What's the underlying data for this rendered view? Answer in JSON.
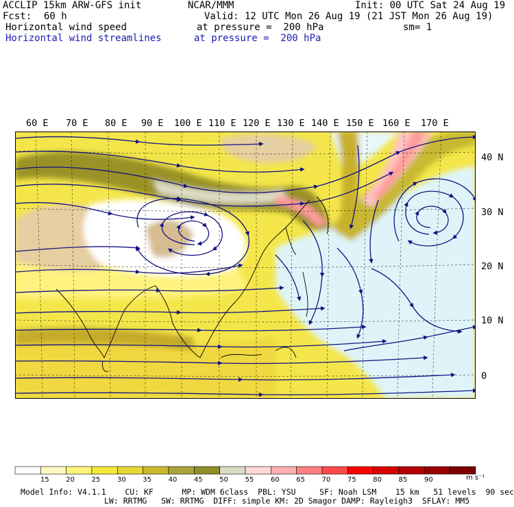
{
  "header": {
    "model": "ACCLIP 15km ARW-GFS init",
    "center": "NCAR/MMM",
    "init": "Init: 00 UTC Sat 24 Aug 19",
    "fcst_label": "Fcst:",
    "fcst_value": "60 h",
    "valid": "Valid: 12 UTC Mon 26 Aug 19 (21 JST Mon 26 Aug 19)",
    "field1": "Horizontal wind speed",
    "field1_level": "at pressure =  200 hPa",
    "smoothing": "sm= 1",
    "field2": "Horizontal wind streamlines",
    "field2_level": "at pressure =  200 hPa"
  },
  "map": {
    "lon_labels": [
      "60 E",
      "70 E",
      "80 E",
      "90 E",
      "100 E",
      "110 E",
      "120 E",
      "130 E",
      "140 E",
      "150 E",
      "160 E",
      "170 E"
    ],
    "lat_labels": [
      "40 N",
      "30 N",
      "20 N",
      "10 N",
      "0"
    ]
  },
  "colorbar": {
    "ticks": [
      "15",
      "20",
      "25",
      "30",
      "35",
      "40",
      "45",
      "50",
      "55",
      "60",
      "65",
      "70",
      "75",
      "80",
      "85",
      "90"
    ],
    "units": "m s⁻¹",
    "colors": [
      "#ffffff",
      "#fffbc0",
      "#fff47a",
      "#f6e83a",
      "#e8d635",
      "#cdb82c",
      "#a8a43a",
      "#8f8e28",
      "#dcdcc4",
      "#ffd8d8",
      "#ffb0b0",
      "#ff8080",
      "#ff4a4a",
      "#ff0000",
      "#d80000",
      "#b40000",
      "#980000",
      "#7a0000"
    ]
  },
  "footer": {
    "line1": "Model Info: V4.1.1    CU: KF      MP: WDM 6class  PBL: YSU     SF: Noah LSM    15 km   51 levels  90 sec",
    "line2": "LW: RRTMG   SW: RRTMG  DIFF: simple KM: 2D Smagor DAMP: Rayleigh3  SFLAY: MM5"
  }
}
